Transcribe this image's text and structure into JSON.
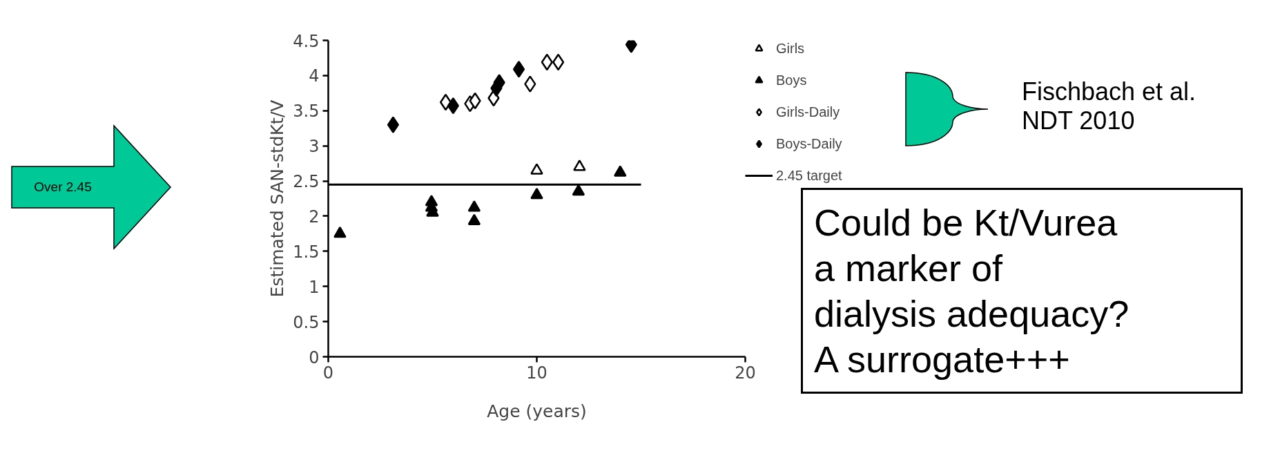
{
  "chart_data": {
    "type": "scatter",
    "xlabel": "Age (years)",
    "ylabel": "Estimated SAN-stdKt/V",
    "xlim": [
      0,
      20
    ],
    "xticks": [
      0,
      10,
      20
    ],
    "ylim": [
      0,
      4.5
    ],
    "yticks": [
      0,
      0.5,
      1,
      1.5,
      2,
      2.5,
      3,
      3.5,
      4,
      4.5
    ],
    "grid": false,
    "legend": "right",
    "series": [
      {
        "name": "Girls",
        "color": "#ffffff",
        "marker": "triangle",
        "x": [
          10,
          12.05
        ],
        "values": [
          2.65,
          2.7
        ]
      },
      {
        "name": "Boys",
        "color": "#000000",
        "marker": "triangle",
        "x": [
          0.56,
          4.95,
          4.95,
          5.0,
          7.0,
          7.0,
          10.0,
          12.0,
          14.0
        ],
        "values": [
          1.75,
          2.2,
          2.12,
          2.05,
          2.12,
          1.93,
          2.3,
          2.35,
          2.62
        ]
      },
      {
        "name": "Girls-Daily",
        "color": "#ffffff",
        "marker": "diamond",
        "x": [
          5.63,
          6.8,
          7.04,
          7.93,
          9.68,
          10.49,
          11.03
        ],
        "values": [
          3.62,
          3.6,
          3.64,
          3.68,
          3.88,
          4.19,
          4.19
        ]
      },
      {
        "name": "Boys-Daily",
        "color": "#000000",
        "marker": "diamond",
        "x": [
          3.11,
          5.99,
          8.06,
          8.2,
          9.14,
          14.53
        ],
        "values": [
          3.3,
          3.57,
          3.82,
          3.9,
          4.09,
          4.44
        ]
      },
      {
        "name": "2.45 target",
        "type": "line",
        "color": "#000000",
        "line_style": "solid",
        "x": [
          0,
          15
        ],
        "values": [
          2.45,
          2.45
        ]
      }
    ],
    "annotations": [
      "Over 2.45",
      "Fischbach et al.\nNDT 2010",
      "Could be Kt/Vurea\na marker of\ndialysis adequacy?\nA surrogate+++"
    ]
  }
}
